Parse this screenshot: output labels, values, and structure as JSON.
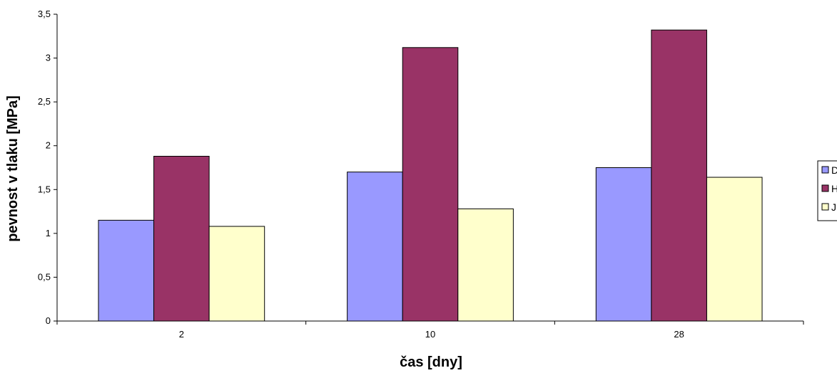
{
  "chart_data": {
    "type": "bar",
    "categories": [
      "2",
      "10",
      "28"
    ],
    "series": [
      {
        "name": "D",
        "color": "#9999ff",
        "values": [
          1.15,
          1.7,
          1.75
        ]
      },
      {
        "name": "H",
        "color": "#993366",
        "values": [
          1.88,
          3.12,
          3.32
        ]
      },
      {
        "name": "J",
        "color": "#ffffcc",
        "values": [
          1.08,
          1.28,
          1.64
        ]
      }
    ],
    "title": "",
    "xlabel": "čas [dny]",
    "ylabel": "pevnost v tlaku [MPa]",
    "ylim": [
      0,
      3.5
    ],
    "ytick_labels": [
      "0",
      "0,5",
      "1",
      "1,5",
      "2",
      "2,5",
      "3",
      "3,5"
    ],
    "grid": false,
    "legend_position": "right"
  }
}
